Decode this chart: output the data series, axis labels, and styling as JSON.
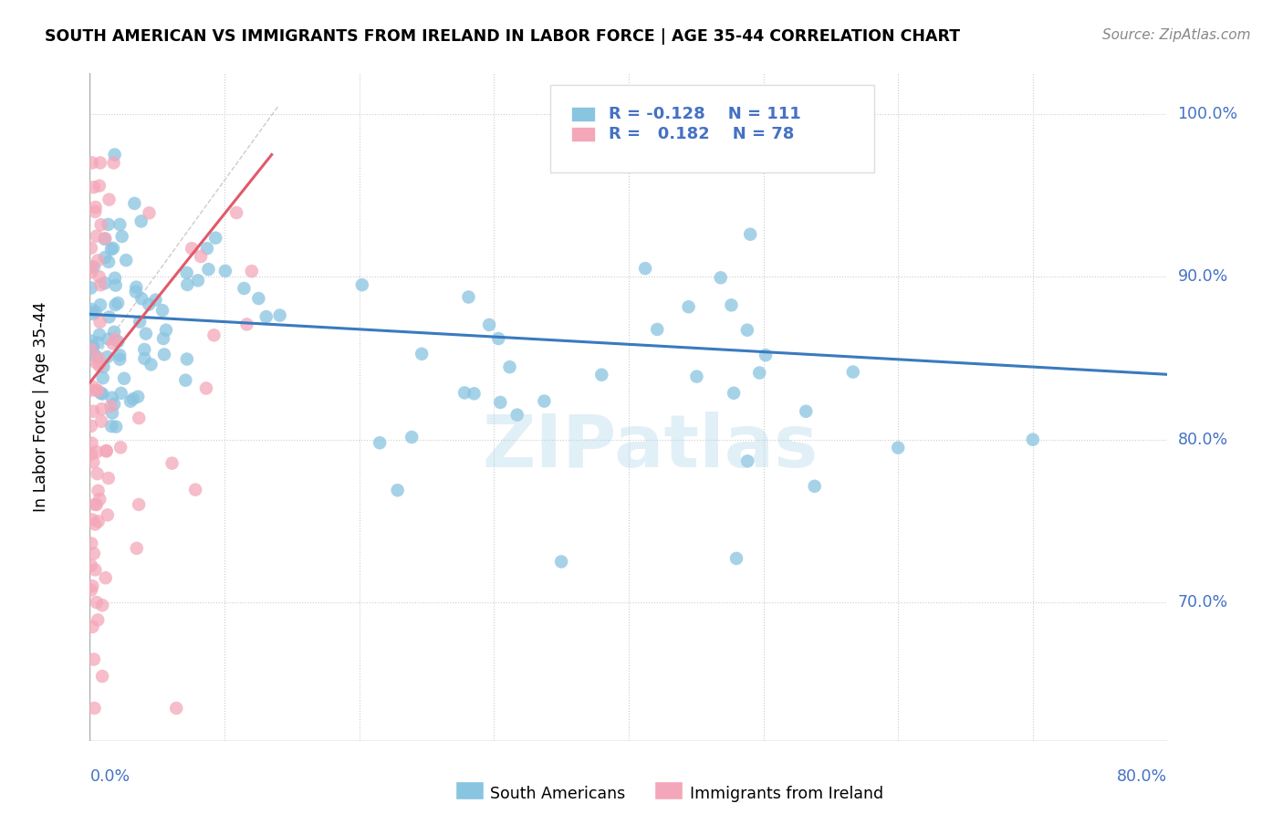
{
  "title": "SOUTH AMERICAN VS IMMIGRANTS FROM IRELAND IN LABOR FORCE | AGE 35-44 CORRELATION CHART",
  "source": "Source: ZipAtlas.com",
  "ylabel": "In Labor Force | Age 35-44",
  "legend_blue_r": "-0.128",
  "legend_blue_n": "111",
  "legend_pink_r": "0.182",
  "legend_pink_n": "78",
  "blue_color": "#89c4e1",
  "pink_color": "#f4a7b9",
  "blue_line_color": "#3a7abf",
  "pink_line_color": "#e05a6a",
  "diag_color": "#cccccc",
  "background_color": "#ffffff",
  "grid_color": "#cccccc",
  "watermark": "ZIPatlas",
  "right_label_color": "#4472c4",
  "xmin": 0.0,
  "xmax": 0.8,
  "ymin": 0.615,
  "ymax": 1.025,
  "yticks": [
    0.7,
    0.8,
    0.9,
    1.0
  ],
  "ytick_labels": [
    "70.0%",
    "80.0%",
    "90.0%",
    "100.0%"
  ],
  "xtick_labels": [
    "0.0%",
    "80.0%"
  ]
}
